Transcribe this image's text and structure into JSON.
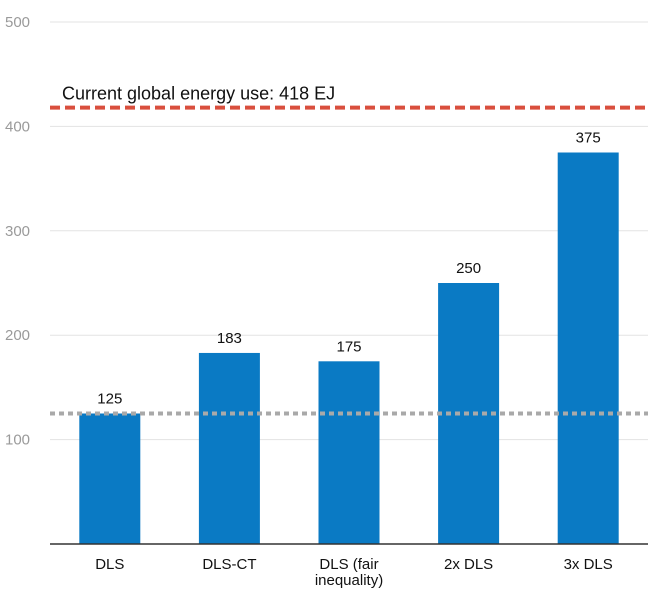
{
  "chart_data": {
    "type": "bar",
    "categories": [
      "DLS",
      "DLS-CT",
      "DLS (fair\ninequality)",
      "2x DLS",
      "3x DLS"
    ],
    "values": [
      125,
      183,
      175,
      250,
      375
    ],
    "value_labels": [
      "125",
      "183",
      "175",
      "250",
      "375"
    ],
    "ylim": [
      0,
      500
    ],
    "yticks": [
      100,
      200,
      300,
      400,
      500
    ],
    "ytick_labels": [
      "100",
      "200",
      "300",
      "400",
      "500"
    ],
    "grid": true,
    "reference_lines": [
      {
        "value": 418,
        "style": "dashed",
        "color": "#d94f3d",
        "label": "Current global energy use: 418 EJ"
      },
      {
        "value": 125,
        "style": "dotted",
        "color": "#a9a9a9",
        "label": ""
      }
    ],
    "colors": {
      "bar": "#0a7ac4",
      "grid": "#e3e3e3",
      "axis": "#333333"
    }
  }
}
